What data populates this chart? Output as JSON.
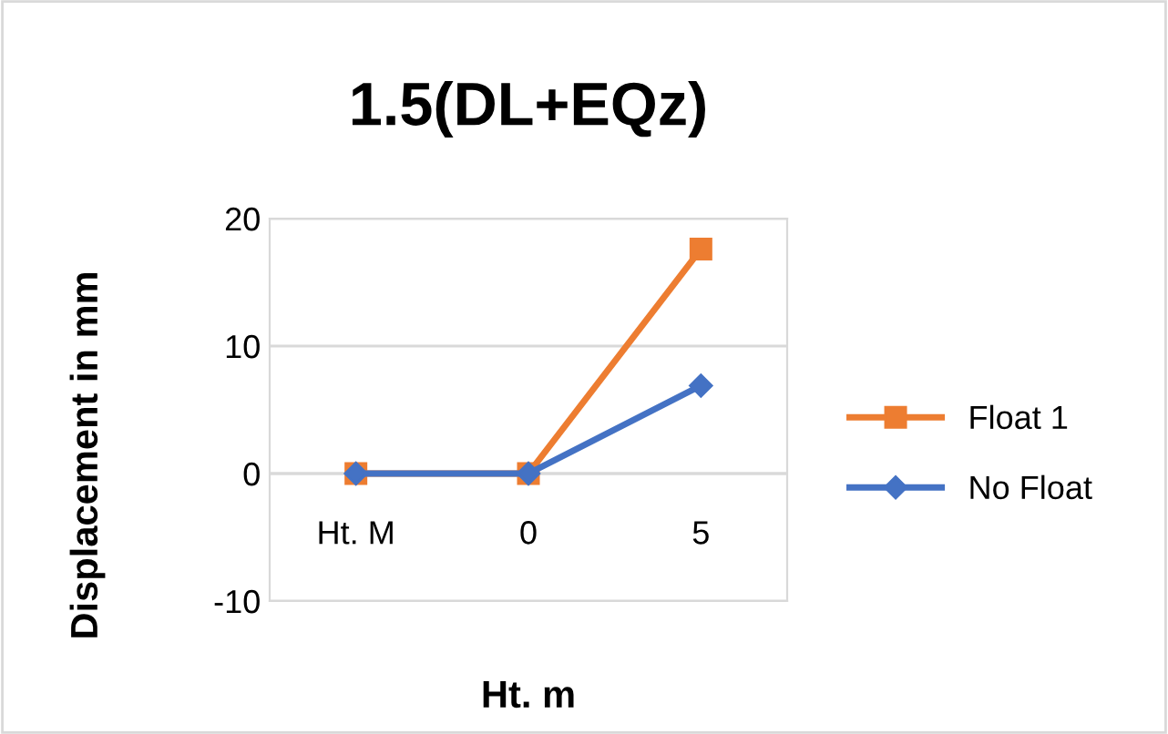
{
  "chart_data": {
    "type": "line",
    "title": "1.5(DL+EQz)",
    "xlabel": "Ht. m",
    "ylabel": "Displacement in mm",
    "categories": [
      "Ht. M",
      "0",
      "5"
    ],
    "series": [
      {
        "name": "Float 1",
        "color": "#ed7d31",
        "marker": "square",
        "values": [
          0,
          0,
          17.6
        ]
      },
      {
        "name": "No Float",
        "color": "#4472c4",
        "marker": "diamond",
        "values": [
          0,
          0,
          6.9
        ]
      }
    ],
    "ylim": [
      -10,
      20
    ],
    "yticks": [
      -10,
      0,
      10,
      20
    ],
    "grid": "y",
    "legend": "right",
    "line_style": "solid"
  }
}
